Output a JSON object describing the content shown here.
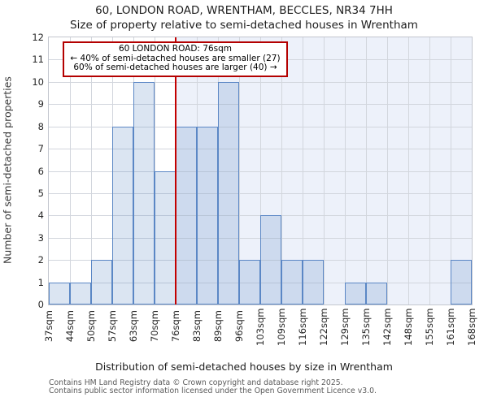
{
  "chart_data": {
    "type": "bar",
    "title": "60, LONDON ROAD, WRENTHAM, BECCLES, NR34 7HH",
    "subtitle": "Size of property relative to semi-detached houses in Wrentham",
    "xlabel": "Distribution of semi-detached houses by size in Wrentham",
    "ylabel": "Number of semi-detached properties",
    "categories": [
      "37sqm",
      "44sqm",
      "50sqm",
      "57sqm",
      "63sqm",
      "70sqm",
      "76sqm",
      "83sqm",
      "89sqm",
      "96sqm",
      "103sqm",
      "109sqm",
      "116sqm",
      "122sqm",
      "129sqm",
      "135sqm",
      "142sqm",
      "148sqm",
      "155sqm",
      "161sqm",
      "168sqm"
    ],
    "values": [
      1,
      1,
      2,
      8,
      10,
      6,
      8,
      8,
      10,
      2,
      4,
      2,
      2,
      0,
      1,
      1,
      0,
      0,
      0,
      2
    ],
    "ylim": [
      0,
      12
    ],
    "yticks": [
      0,
      1,
      2,
      3,
      4,
      5,
      6,
      7,
      8,
      9,
      10,
      11,
      12
    ],
    "grid": true,
    "legend": "none",
    "marker_line": {
      "at_label": "76sqm",
      "color": "#c30000"
    },
    "shaded_region": {
      "from_label": "76sqm",
      "to_label": "168sqm",
      "color": "#edf1fa"
    },
    "annotation": {
      "line1": "60 LONDON ROAD: 76sqm",
      "line2": "← 40% of semi-detached houses are smaller (27)",
      "line3": "60% of semi-detached houses are larger (40) →",
      "border_color": "#b40000"
    },
    "colors": {
      "bar_fill": "rgba(91,135,197,0.22)",
      "bar_border": "#5b87c5",
      "gridline": "#d2d6dd"
    }
  },
  "footer": {
    "line1": "Contains HM Land Registry data © Crown copyright and database right 2025.",
    "line2": "Contains public sector information licensed under the Open Government Licence v3.0."
  }
}
